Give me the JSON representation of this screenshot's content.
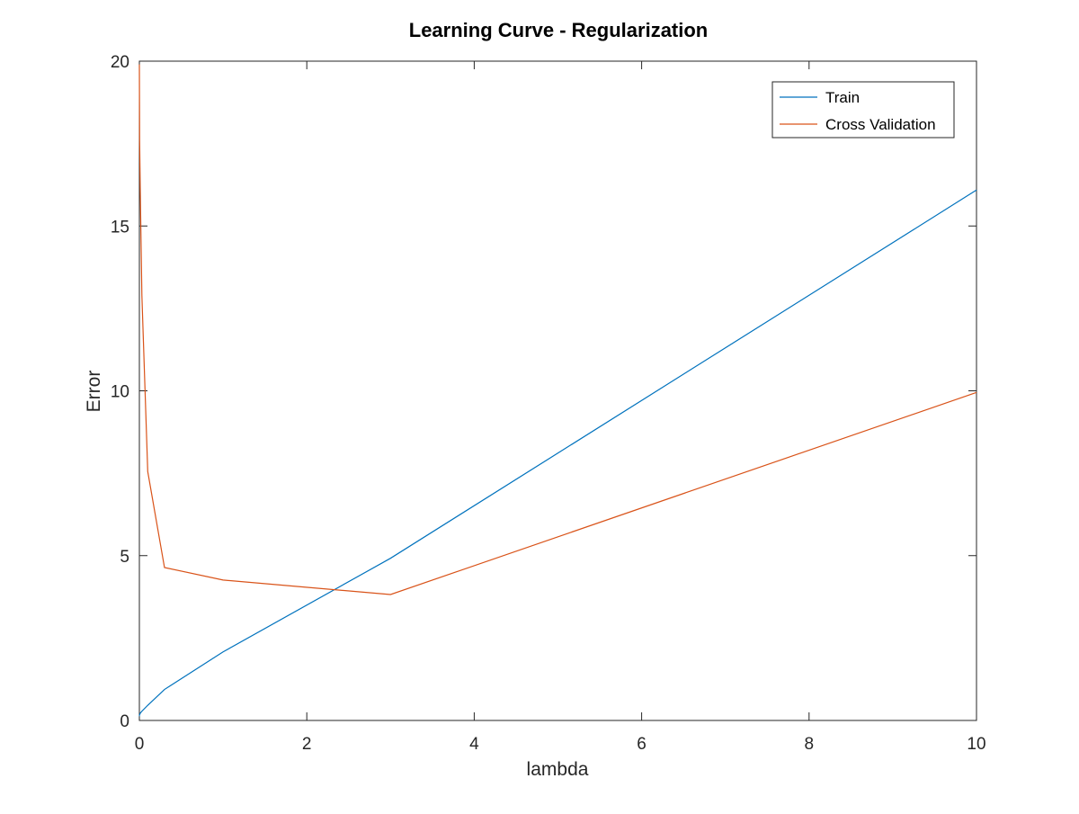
{
  "chart_data": {
    "type": "line",
    "title": "Learning Curve - Regularization",
    "xlabel": "lambda",
    "ylabel": "Error",
    "xlim": [
      0,
      10
    ],
    "ylim": [
      0,
      20
    ],
    "xticks": [
      0,
      2,
      4,
      6,
      8,
      10
    ],
    "yticks": [
      0,
      5,
      10,
      15,
      20
    ],
    "xtick_labels": [
      "0",
      "2",
      "4",
      "6",
      "8",
      "10"
    ],
    "ytick_labels": [
      "0",
      "5",
      "10",
      "15",
      "20"
    ],
    "grid": false,
    "legend_position": "top-right",
    "x": [
      0,
      0.001,
      0.003,
      0.01,
      0.03,
      0.1,
      0.3,
      1,
      3,
      10
    ],
    "series": [
      {
        "name": "Train",
        "color": "#0072BD",
        "values": [
          0.17,
          0.16,
          0.17,
          0.22,
          0.28,
          0.46,
          0.94,
          2.08,
          4.92,
          16.09
        ]
      },
      {
        "name": "Cross Validation",
        "color": "#D95319",
        "values": [
          19.9,
          19.1,
          17.6,
          16.2,
          12.9,
          7.55,
          4.64,
          4.26,
          3.82,
          9.95
        ]
      }
    ]
  }
}
